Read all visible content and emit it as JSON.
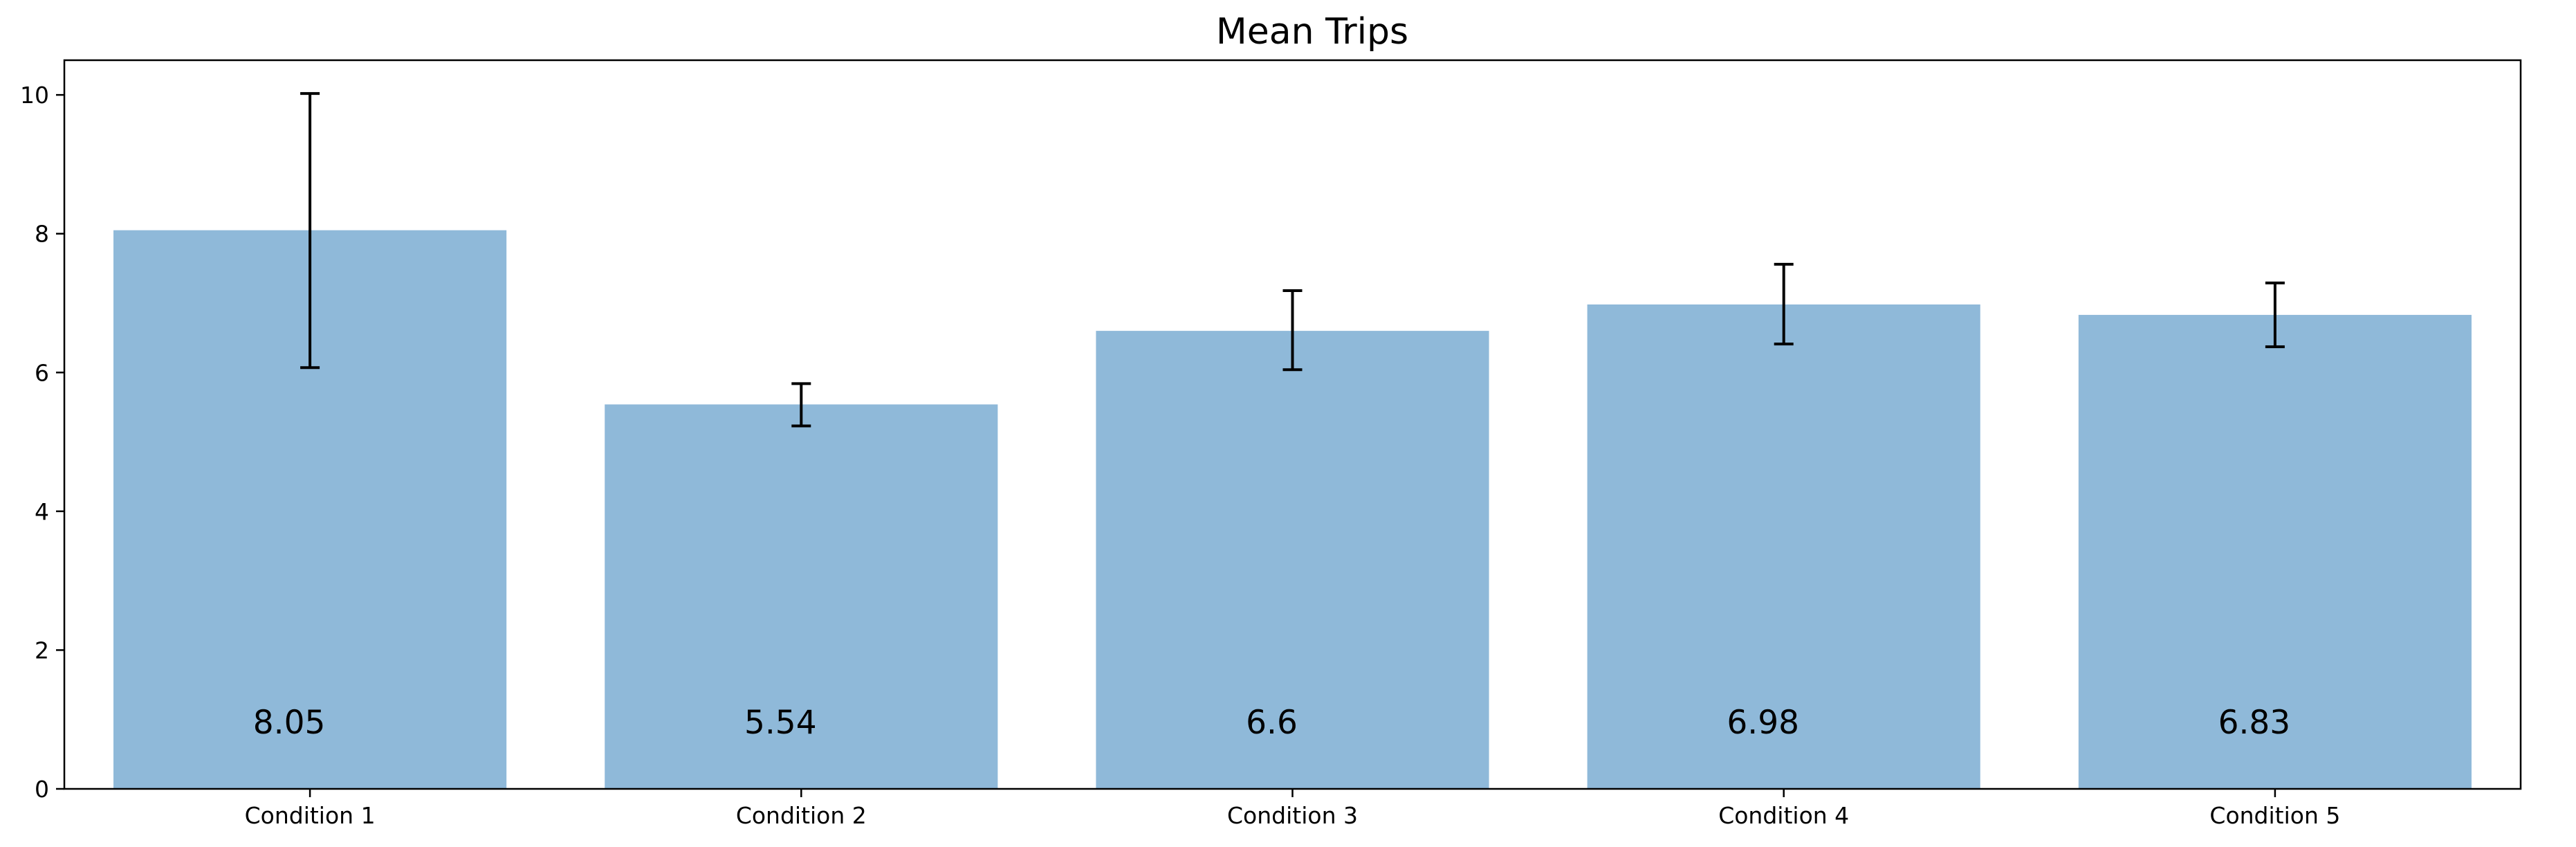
{
  "chart_data": {
    "type": "bar",
    "title": "Mean Trips",
    "xlabel": "",
    "ylabel": "",
    "categories": [
      "Condition 1",
      "Condition 2",
      "Condition 3",
      "Condition 4",
      "Condition 5"
    ],
    "values": [
      8.05,
      5.54,
      6.6,
      6.98,
      6.83
    ],
    "value_labels": [
      "8.05",
      "5.54",
      "6.6",
      "6.98",
      "6.83"
    ],
    "error_low": [
      6.07,
      5.23,
      6.04,
      6.41,
      6.37
    ],
    "error_high": [
      10.02,
      5.84,
      7.18,
      7.56,
      7.29
    ],
    "ylim": [
      0,
      10.5
    ],
    "yticks": [
      0,
      2,
      4,
      6,
      8,
      10
    ],
    "ytick_labels": [
      "0",
      "2",
      "4",
      "6",
      "8",
      "10"
    ],
    "grid": false,
    "legend": "none",
    "bar_color": "#8fb9d9",
    "error_color": "#000000"
  }
}
